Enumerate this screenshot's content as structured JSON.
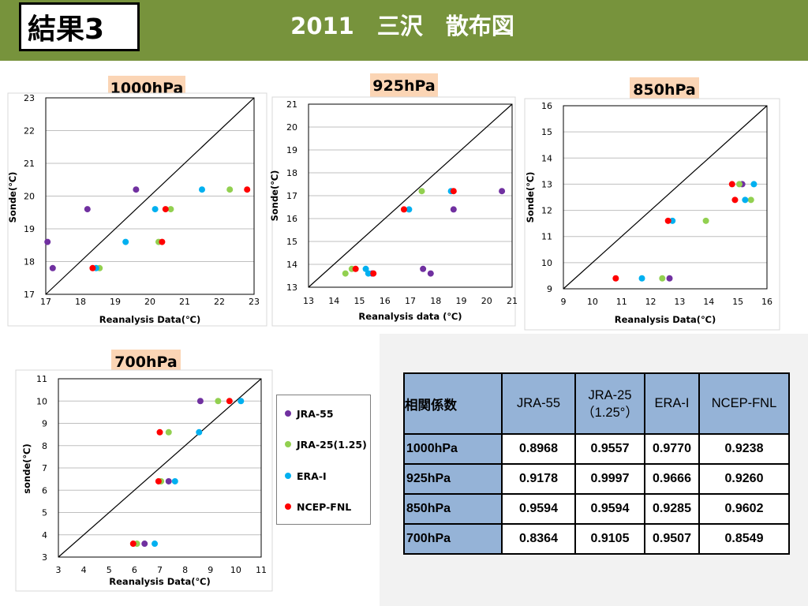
{
  "header": {
    "badge": "結果3",
    "title": "2011　三沢　散布図"
  },
  "colors": {
    "header_bg": "#77933c",
    "plot_label_bg": "#fbd5b5",
    "table_header_bg": "#95b3d7",
    "JRA-55": "#7030a0",
    "JRA-25(1.25)": "#92d050",
    "ERA-I": "#00b0f0",
    "NCEP-FNL": "#ff0000"
  },
  "legend": [
    "JRA-55",
    "JRA-25(1.25)",
    "ERA-I",
    "NCEP-FNL"
  ],
  "chart_data": [
    {
      "type": "scatter",
      "title": "1000hPa",
      "xlabel": "Reanalysis Data(℃)",
      "ylabel": "Sonde(℃)",
      "xlim": [
        17,
        23
      ],
      "ylim": [
        17,
        23
      ],
      "xticks": [
        17,
        18,
        19,
        20,
        21,
        22,
        23
      ],
      "yticks": [
        17,
        18,
        19,
        20,
        21,
        22,
        23
      ],
      "grid": "horizontal",
      "diagonal": true,
      "series": [
        {
          "name": "JRA-55",
          "points": [
            [
              17.05,
              18.6
            ],
            [
              17.2,
              17.8
            ],
            [
              18.2,
              19.6
            ],
            [
              19.6,
              20.2
            ]
          ]
        },
        {
          "name": "JRA-25(1.25)",
          "points": [
            [
              18.55,
              17.8
            ],
            [
              20.25,
              18.6
            ],
            [
              20.6,
              19.6
            ],
            [
              22.3,
              20.2
            ]
          ]
        },
        {
          "name": "ERA-I",
          "points": [
            [
              18.45,
              17.8
            ],
            [
              19.3,
              18.6
            ],
            [
              20.15,
              19.6
            ],
            [
              21.5,
              20.2
            ]
          ]
        },
        {
          "name": "NCEP-FNL",
          "points": [
            [
              18.35,
              17.8
            ],
            [
              20.35,
              18.6
            ],
            [
              20.45,
              19.6
            ],
            [
              22.8,
              20.2
            ]
          ]
        }
      ]
    },
    {
      "type": "scatter",
      "title": "925hPa",
      "xlabel": "Reanalysis data (℃)",
      "ylabel": "Sonde(℃)",
      "xlim": [
        13,
        21
      ],
      "ylim": [
        13,
        21
      ],
      "xticks": [
        13,
        14,
        15,
        16,
        17,
        18,
        19,
        20,
        21
      ],
      "yticks": [
        13,
        14,
        15,
        16,
        17,
        18,
        19,
        20,
        21
      ],
      "grid": "horizontal",
      "diagonal": true,
      "series": [
        {
          "name": "JRA-55",
          "points": [
            [
              15.5,
              13.6
            ],
            [
              17.5,
              13.8
            ],
            [
              17.8,
              13.6
            ],
            [
              18.7,
              16.4
            ],
            [
              20.6,
              17.2
            ]
          ]
        },
        {
          "name": "JRA-25(1.25)",
          "points": [
            [
              14.45,
              13.6
            ],
            [
              14.7,
              13.8
            ],
            [
              17.45,
              17.2
            ]
          ]
        },
        {
          "name": "ERA-I",
          "points": [
            [
              15.25,
              13.8
            ],
            [
              15.35,
              13.6
            ],
            [
              16.95,
              16.4
            ],
            [
              18.6,
              17.2
            ]
          ]
        },
        {
          "name": "NCEP-FNL",
          "points": [
            [
              14.85,
              13.8
            ],
            [
              15.55,
              13.6
            ],
            [
              16.75,
              16.4
            ],
            [
              18.7,
              17.2
            ]
          ]
        }
      ]
    },
    {
      "type": "scatter",
      "title": "850hPa",
      "xlabel": "Reanalysis Data(℃)",
      "ylabel": "Sonde(℃)",
      "xlim": [
        9,
        16
      ],
      "ylim": [
        9,
        16
      ],
      "xticks": [
        9,
        10,
        11,
        12,
        13,
        14,
        15,
        16
      ],
      "yticks": [
        9,
        10,
        11,
        12,
        13,
        14,
        15,
        16
      ],
      "grid": "horizontal",
      "diagonal": true,
      "series": [
        {
          "name": "JRA-55",
          "points": [
            [
              12.65,
              9.4
            ],
            [
              15.15,
              13.0
            ]
          ]
        },
        {
          "name": "JRA-25(1.25)",
          "points": [
            [
              12.4,
              9.4
            ],
            [
              13.9,
              11.6
            ],
            [
              15.05,
              13.0
            ],
            [
              15.45,
              12.4
            ]
          ]
        },
        {
          "name": "ERA-I",
          "points": [
            [
              11.7,
              9.4
            ],
            [
              12.75,
              11.6
            ],
            [
              15.25,
              12.4
            ],
            [
              15.55,
              13.0
            ]
          ]
        },
        {
          "name": "NCEP-FNL",
          "points": [
            [
              10.8,
              9.4
            ],
            [
              12.6,
              11.6
            ],
            [
              14.8,
              13.0
            ],
            [
              14.9,
              12.4
            ]
          ]
        }
      ]
    },
    {
      "type": "scatter",
      "title": "700hPa",
      "xlabel": "Reanalysis Data(℃)",
      "ylabel": "sonde(℃)",
      "xlim": [
        3,
        11
      ],
      "ylim": [
        3,
        11
      ],
      "xticks": [
        3,
        4,
        5,
        6,
        7,
        8,
        9,
        10,
        11
      ],
      "yticks": [
        3,
        4,
        5,
        6,
        7,
        8,
        9,
        10,
        11
      ],
      "grid": "horizontal",
      "diagonal": true,
      "series": [
        {
          "name": "JRA-55",
          "points": [
            [
              6.4,
              3.6
            ],
            [
              7.35,
              6.4
            ],
            [
              8.6,
              10.0
            ]
          ]
        },
        {
          "name": "JRA-25(1.25)",
          "points": [
            [
              6.1,
              3.6
            ],
            [
              7.05,
              6.4
            ],
            [
              7.35,
              8.6
            ],
            [
              9.3,
              10.0
            ]
          ]
        },
        {
          "name": "ERA-I",
          "points": [
            [
              6.8,
              3.6
            ],
            [
              7.6,
              6.4
            ],
            [
              8.55,
              8.6
            ],
            [
              10.2,
              10.0
            ]
          ]
        },
        {
          "name": "NCEP-FNL",
          "points": [
            [
              5.95,
              3.6
            ],
            [
              6.95,
              6.4
            ],
            [
              7.0,
              8.6
            ],
            [
              9.75,
              10.0
            ]
          ]
        }
      ]
    },
    {
      "type": "table",
      "corner": "相関係数",
      "columns": [
        "JRA-55",
        "JRA-25\n（1.25°）",
        "ERA-I",
        "NCEP-FNL"
      ],
      "rows": [
        {
          "label": "1000hPa",
          "values": [
            "0.8968",
            "0.9557",
            "0.9770",
            "0.9238"
          ]
        },
        {
          "label": "925hPa",
          "values": [
            "0.9178",
            "0.9997",
            "0.9666",
            "0.9260"
          ]
        },
        {
          "label": "850hPa",
          "values": [
            "0.9594",
            "0.9594",
            "0.9285",
            "0.9602"
          ]
        },
        {
          "label": "700hPa",
          "values": [
            "0.8364",
            "0.9105",
            "0.9507",
            "0.8549"
          ]
        }
      ]
    }
  ]
}
